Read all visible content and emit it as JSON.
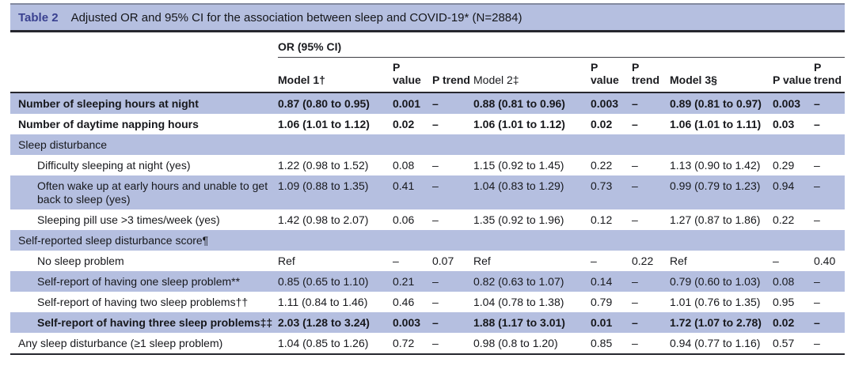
{
  "colors": {
    "band": "#b5bfe0",
    "title_accent": "#3a4190",
    "rule_dark": "#26272e"
  },
  "table": {
    "title_label": "Table 2",
    "title": "Adjusted OR and 95% CI for the association between sleep and COVID-19* (N=2884)",
    "group_header": "OR (95% CI)",
    "columns": [
      "",
      "Model 1†",
      "P value",
      "P trend",
      "Model 2‡",
      "P value",
      "P trend",
      "Model 3§",
      "P value",
      "P trend"
    ],
    "rows": [
      {
        "label": "Number of sleeping hours at night",
        "cells": [
          "0.87 (0.80 to 0.95)",
          "0.001",
          "–",
          "0.88 (0.81 to 0.96)",
          "0.003",
          "–",
          "0.89 (0.81 to 0.97)",
          "0.003",
          "–"
        ]
      },
      {
        "label": "Number of daytime napping hours",
        "cells": [
          "1.06 (1.01 to 1.12)",
          "0.02",
          "–",
          "1.06 (1.01 to 1.12)",
          "0.02",
          "–",
          "1.06 (1.01 to 1.11)",
          "0.03",
          "–"
        ]
      },
      {
        "label": "Sleep disturbance",
        "cells": []
      },
      {
        "label": "Difficulty sleeping at night (yes)",
        "cells": [
          "1.22 (0.98 to 1.52)",
          "0.08",
          "–",
          "1.15 (0.92 to 1.45)",
          "0.22",
          "–",
          "1.13 (0.90 to 1.42)",
          "0.29",
          "–"
        ]
      },
      {
        "label": "Often wake up at early hours and unable to get back to sleep (yes)",
        "cells": [
          "1.09 (0.88 to 1.35)",
          "0.41",
          "–",
          "1.04 (0.83 to 1.29)",
          "0.73",
          "–",
          "0.99 (0.79 to 1.23)",
          "0.94",
          "–"
        ]
      },
      {
        "label": "Sleeping pill use >3 times/week (yes)",
        "cells": [
          "1.42 (0.98 to 2.07)",
          "0.06",
          "–",
          "1.35 (0.92 to 1.96)",
          "0.12",
          "–",
          "1.27 (0.87 to 1.86)",
          "0.22",
          "–"
        ]
      },
      {
        "label": "Self-reported sleep disturbance score¶",
        "cells": []
      },
      {
        "label": "No sleep problem",
        "cells": [
          "Ref",
          "–",
          "0.07",
          "Ref",
          "–",
          "0.22",
          "Ref",
          "–",
          "0.40"
        ]
      },
      {
        "label": "Self-report of having one sleep problem**",
        "cells": [
          "0.85 (0.65 to 1.10)",
          "0.21",
          "–",
          "0.82 (0.63 to 1.07)",
          "0.14",
          "–",
          "0.79 (0.60 to 1.03)",
          "0.08",
          "–"
        ]
      },
      {
        "label": "Self-report of having two sleep problems††",
        "cells": [
          "1.11 (0.84 to 1.46)",
          "0.46",
          "–",
          "1.04 (0.78 to 1.38)",
          "0.79",
          "–",
          "1.01 (0.76 to 1.35)",
          "0.95",
          "–"
        ]
      },
      {
        "label": "Self-report of having three sleep problems‡‡",
        "cells": [
          "2.03 (1.28 to 3.24)",
          "0.003",
          "–",
          "1.88 (1.17 to 3.01)",
          "0.01",
          "–",
          "1.72 (1.07 to 2.78)",
          "0.02",
          "–"
        ]
      },
      {
        "label": "Any sleep disturbance (≥1 sleep problem)",
        "cells": [
          "1.04 (0.85 to 1.26)",
          "0.72",
          "–",
          "0.98 (0.8 to 1.20)",
          "0.85",
          "–",
          "0.94 (0.77 to 1.16)",
          "0.57",
          "–"
        ]
      }
    ]
  }
}
